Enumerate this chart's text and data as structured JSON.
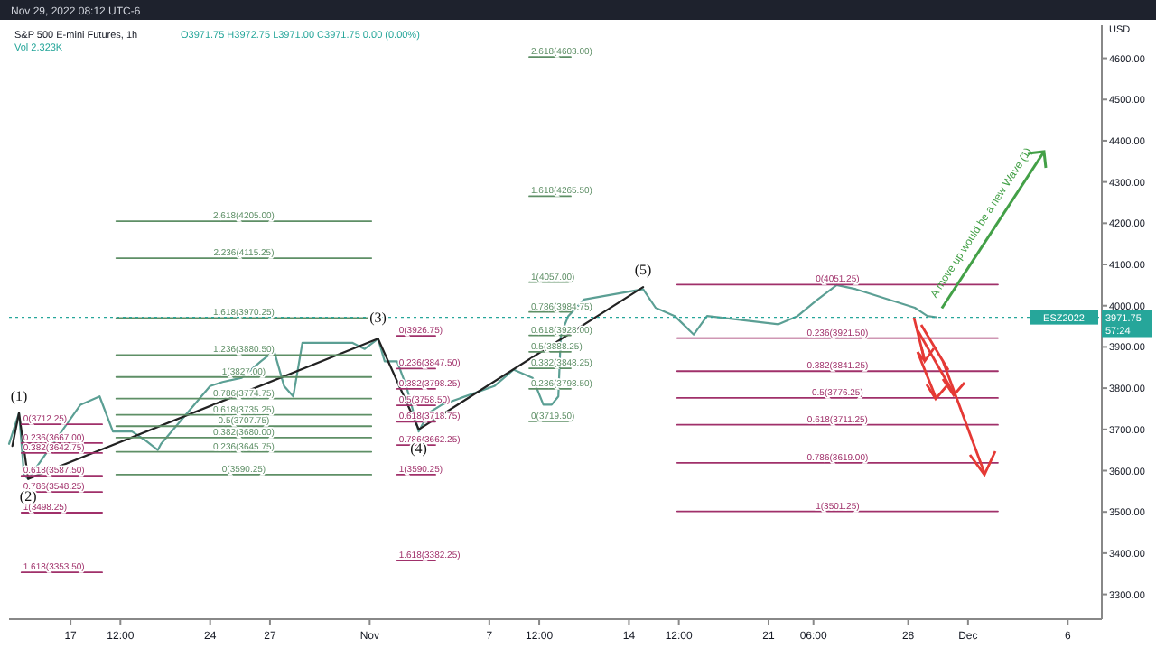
{
  "chart_data": {
    "type": "line",
    "title": "S&P 500 E-mini Futures, 1h",
    "subtitle": "O3971.75 H3972.75 L3971.00 C3971.75 0.00 (0.00%)",
    "ylabel": "USD",
    "xlim": [
      "2022-10-13T22:00",
      "2022-12-07T17:00"
    ],
    "xticks": [
      {
        "value": "2022-10-17",
        "label": "17"
      },
      {
        "value": "2022-10-19T12:00",
        "label": "12:00"
      },
      {
        "value": "2022-10-24",
        "label": "24"
      },
      {
        "value": "2022-10-27",
        "label": "27"
      },
      {
        "value": "2022-11-01",
        "label": "Nov"
      },
      {
        "value": "2022-11-07",
        "label": "7"
      },
      {
        "value": "2022-11-09T12:00",
        "label": "12:00"
      },
      {
        "value": "2022-11-14",
        "label": "14"
      },
      {
        "value": "2022-11-16T12:00",
        "label": "12:00"
      },
      {
        "value": "2022-11-21",
        "label": "21"
      },
      {
        "value": "2022-11-23T06:00",
        "label": "06:00"
      },
      {
        "value": "2022-11-28",
        "label": "28"
      },
      {
        "value": "2022-12-01",
        "label": "Dec"
      },
      {
        "value": "2022-12-06",
        "label": "6"
      }
    ],
    "ylim": [
      3240,
      4680
    ],
    "yticks": [
      {
        "value": 3300,
        "label": "3300.00"
      },
      {
        "value": 3400,
        "label": "3400.00"
      },
      {
        "value": 3500,
        "label": "3500.00"
      },
      {
        "value": 3600,
        "label": "3600.00"
      },
      {
        "value": 3700,
        "label": "3700.00"
      },
      {
        "value": 3800,
        "label": "3800.00"
      },
      {
        "value": 3900,
        "label": "3900.00"
      },
      {
        "value": 4000,
        "label": "4000.00"
      },
      {
        "value": 4100,
        "label": "4100.00"
      },
      {
        "value": 4200,
        "label": "4200.00"
      },
      {
        "value": 4300,
        "label": "4300.00"
      },
      {
        "value": 4400,
        "label": "4400.00"
      },
      {
        "value": 4500,
        "label": "4500.00"
      },
      {
        "value": 4600,
        "label": "4600.00"
      }
    ],
    "grid": false,
    "line_style": "solid",
    "marker": "none",
    "ref_lines": [
      {
        "axis": "y",
        "value": 3971.75,
        "label": "ESZ2022",
        "color": "#26a69a",
        "line_style": "dotted"
      }
    ],
    "annotations": [
      "Nov 29, 2022 08:12 UTC-6",
      "Vol 2.323K",
      "3971.75",
      "57:24",
      "A move up would be a new Wave (1)",
      {
        "text": "(1)",
        "x": "2022-10-14T10:00",
        "y": 3740
      },
      {
        "text": "(2)",
        "x": "2022-10-14T21:00",
        "y": 3580
      },
      {
        "text": "(3)",
        "x": "2022-11-01T10:00",
        "y": 3930
      },
      {
        "text": "(4)",
        "x": "2022-11-03T11:00",
        "y": 3695
      },
      {
        "text": "(5)",
        "x": "2022-11-14T17:00",
        "y": 4045
      }
    ],
    "series": [
      {
        "color": "#5b9f94",
        "x": [
          "2022-10-13T22:00",
          "2022-10-14T10:00",
          "2022-10-14T16:00",
          "2022-10-14T21:00",
          "2022-10-17T12:00",
          "2022-10-18T11:00",
          "2022-10-19T03:00",
          "2022-10-20T02:00",
          "2022-10-20T17:00",
          "2022-10-21T09:00",
          "2022-10-21T13:00",
          "2022-10-24T00:00",
          "2022-10-24T15:00",
          "2022-10-25T14:00",
          "2022-10-26T13:00",
          "2022-10-27T05:00",
          "2022-10-27T17:00",
          "2022-10-28T04:00",
          "2022-10-28T15:00",
          "2022-10-31T03:00",
          "2022-10-31T18:00",
          "2022-11-01T10:00",
          "2022-11-01T18:00",
          "2022-11-02T09:00",
          "2022-11-02T20:00",
          "2022-11-03T11:00",
          "2022-11-03T23:00",
          "2022-11-04T15:00",
          "2022-11-07T06:00",
          "2022-11-08T05:00",
          "2022-11-09T04:00",
          "2022-11-09T17:00",
          "2022-11-10T03:00",
          "2022-11-10T11:00",
          "2022-11-10T14:00",
          "2022-11-10T23:00",
          "2022-11-11T18:00",
          "2022-11-14T17:00",
          "2022-11-15T08:00",
          "2022-11-16T07:00",
          "2022-11-17T06:00",
          "2022-11-17T22:00",
          "2022-11-21T12:00",
          "2022-11-22T11:00",
          "2022-11-23T11:00",
          "2022-11-24T10:00",
          "2022-11-25T09:00",
          "2022-11-28T08:00",
          "2022-11-28T23:00",
          "2022-11-29T10:00"
        ],
        "values": [
          3665,
          3740,
          3590,
          3580,
          3760,
          3780,
          3695,
          3695,
          3675,
          3650,
          3665,
          3805,
          3815,
          3825,
          3865,
          3890,
          3805,
          3780,
          3910,
          3910,
          3895,
          3920,
          3865,
          3865,
          3805,
          3695,
          3740,
          3760,
          3805,
          3845,
          3825,
          3760,
          3760,
          3780,
          3930,
          3975,
          4015,
          4040,
          3995,
          3975,
          3930,
          3975,
          3955,
          3975,
          4015,
          4050,
          4040,
          3995,
          3975,
          3972
        ]
      },
      {
        "color": "#222222",
        "x": [
          "2022-10-14T02:00",
          "2022-10-14T10:00",
          "2022-10-14T21:00",
          "2022-11-01T10:00",
          "2022-11-03T11:00",
          "2022-11-14T17:00"
        ],
        "values": [
          3660,
          3740,
          3580,
          3920,
          3700,
          4045
        ]
      },
      {
        "name": "2.618(4205.00)",
        "color": "#5e8f66",
        "x": [
          "2022-10-19T07:00",
          "2022-11-01T02:00"
        ],
        "values": [
          4205,
          4205
        ]
      },
      {
        "name": "2.236(4115.25)",
        "color": "#5e8f66",
        "x": [
          "2022-10-19T07:00",
          "2022-11-01T02:00"
        ],
        "values": [
          4115.25,
          4115.25
        ]
      },
      {
        "name": "1.618(3970.25)",
        "color": "#5e8f66",
        "x": [
          "2022-10-19T07:00",
          "2022-11-01T02:00"
        ],
        "values": [
          3970.25,
          3970.25
        ]
      },
      {
        "name": "1.236(3880.50)",
        "color": "#5e8f66",
        "x": [
          "2022-10-19T07:00",
          "2022-11-01T02:00"
        ],
        "values": [
          3880.5,
          3880.5
        ]
      },
      {
        "name": "1(3827.00)",
        "color": "#5e8f66",
        "x": [
          "2022-10-19T07:00",
          "2022-11-01T02:00"
        ],
        "values": [
          3827,
          3827
        ]
      },
      {
        "name": "0.786(3774.75)",
        "color": "#5e8f66",
        "x": [
          "2022-10-19T07:00",
          "2022-11-01T02:00"
        ],
        "values": [
          3774.75,
          3774.75
        ]
      },
      {
        "name": "0.618(3735.25)",
        "color": "#5e8f66",
        "x": [
          "2022-10-19T07:00",
          "2022-11-01T02:00"
        ],
        "values": [
          3735.25,
          3735.25
        ]
      },
      {
        "name": "0.5(3707.75)",
        "color": "#5e8f66",
        "x": [
          "2022-10-19T07:00",
          "2022-11-01T02:00"
        ],
        "values": [
          3707.75,
          3707.75
        ]
      },
      {
        "name": "0.382(3680.00)",
        "color": "#5e8f66",
        "x": [
          "2022-10-19T07:00",
          "2022-11-01T02:00"
        ],
        "values": [
          3680,
          3680
        ]
      },
      {
        "name": "0.236(3645.75)",
        "color": "#5e8f66",
        "x": [
          "2022-10-19T07:00",
          "2022-11-01T02:00"
        ],
        "values": [
          3645.75,
          3645.75
        ]
      },
      {
        "name": "0(3590.25)",
        "color": "#5e8f66",
        "x": [
          "2022-10-19T07:00",
          "2022-11-01T02:00"
        ],
        "values": [
          3590.25,
          3590.25
        ]
      },
      {
        "name": "0(3712.25)",
        "color": "#a0306a",
        "x": [
          "2022-10-14T13:00",
          "2022-10-18T14:00"
        ],
        "values": [
          3712.25,
          3712.25
        ]
      },
      {
        "name": "0.236(3667.00)",
        "color": "#a0306a",
        "x": [
          "2022-10-14T13:00",
          "2022-10-18T14:00"
        ],
        "values": [
          3667,
          3667
        ]
      },
      {
        "name": "0.382(3642.75)",
        "color": "#a0306a",
        "x": [
          "2022-10-14T13:00",
          "2022-10-18T14:00"
        ],
        "values": [
          3642.75,
          3642.75
        ]
      },
      {
        "name": "0.618(3587.50)",
        "color": "#a0306a",
        "x": [
          "2022-10-14T13:00",
          "2022-10-18T14:00"
        ],
        "values": [
          3587.5,
          3587.5
        ]
      },
      {
        "name": "0.786(3548.25)",
        "color": "#a0306a",
        "x": [
          "2022-10-14T13:00",
          "2022-10-18T14:00"
        ],
        "values": [
          3548.25,
          3548.25
        ]
      },
      {
        "name": "1(3498.25)",
        "color": "#a0306a",
        "x": [
          "2022-10-14T13:00",
          "2022-10-18T14:00"
        ],
        "values": [
          3498.25,
          3498.25
        ]
      },
      {
        "name": "1.618(3353.50)",
        "color": "#a0306a",
        "x": [
          "2022-10-14T13:00",
          "2022-10-18T14:00"
        ],
        "values": [
          3353.5,
          3353.5
        ]
      },
      {
        "name": "0(3926.75)",
        "color": "#a0306a",
        "x": [
          "2022-11-02T09:00",
          "2022-11-04T07:00"
        ],
        "values": [
          3926.75,
          3926.75
        ]
      },
      {
        "name": "0.236(3847.50)",
        "color": "#a0306a",
        "x": [
          "2022-11-02T09:00",
          "2022-11-04T07:00"
        ],
        "values": [
          3847.5,
          3847.5
        ]
      },
      {
        "name": "0.382(3798.25)",
        "color": "#a0306a",
        "x": [
          "2022-11-02T09:00",
          "2022-11-04T07:00"
        ],
        "values": [
          3798.25,
          3798.25
        ]
      },
      {
        "name": "0.5(3758.50)",
        "color": "#a0306a",
        "x": [
          "2022-11-02T09:00",
          "2022-11-04T07:00"
        ],
        "values": [
          3758.5,
          3758.5
        ]
      },
      {
        "name": "0.618(3718.75)",
        "color": "#a0306a",
        "x": [
          "2022-11-02T09:00",
          "2022-11-04T07:00"
        ],
        "values": [
          3718.75,
          3718.75
        ]
      },
      {
        "name": "0.786(3662.25)",
        "color": "#a0306a",
        "x": [
          "2022-11-02T09:00",
          "2022-11-04T07:00"
        ],
        "values": [
          3662.25,
          3662.25
        ]
      },
      {
        "name": "1(3590.25)",
        "color": "#a0306a",
        "x": [
          "2022-11-02T09:00",
          "2022-11-04T07:00"
        ],
        "values": [
          3590.25,
          3590.25
        ]
      },
      {
        "name": "1.618(3382.25)",
        "color": "#a0306a",
        "x": [
          "2022-11-02T09:00",
          "2022-11-04T07:00"
        ],
        "values": [
          3382.25,
          3382.25
        ]
      },
      {
        "name": "2.618(4603.00)",
        "color": "#5e8f66",
        "x": [
          "2022-11-09T00:00",
          "2022-11-11T02:00"
        ],
        "values": [
          4603,
          4603
        ]
      },
      {
        "name": "1.618(4265.50)",
        "color": "#5e8f66",
        "x": [
          "2022-11-09T00:00",
          "2022-11-11T02:00"
        ],
        "values": [
          4265.5,
          4265.5
        ]
      },
      {
        "name": "1(4057.00)",
        "color": "#5e8f66",
        "x": [
          "2022-11-09T00:00",
          "2022-11-11T02:00"
        ],
        "values": [
          4057,
          4057
        ]
      },
      {
        "name": "0.786(3984.75)",
        "color": "#5e8f66",
        "x": [
          "2022-11-09T00:00",
          "2022-11-11T02:00"
        ],
        "values": [
          3984.75,
          3984.75
        ]
      },
      {
        "name": "0.618(3928.00)",
        "color": "#5e8f66",
        "x": [
          "2022-11-09T00:00",
          "2022-11-11T02:00"
        ],
        "values": [
          3928,
          3928
        ]
      },
      {
        "name": "0.5(3888.25)",
        "color": "#5e8f66",
        "x": [
          "2022-11-09T00:00",
          "2022-11-11T02:00"
        ],
        "values": [
          3888.25,
          3888.25
        ]
      },
      {
        "name": "0.382(3848.25)",
        "color": "#5e8f66",
        "x": [
          "2022-11-09T00:00",
          "2022-11-11T02:00"
        ],
        "values": [
          3848.25,
          3848.25
        ]
      },
      {
        "name": "0.236(3798.50)",
        "color": "#5e8f66",
        "x": [
          "2022-11-09T00:00",
          "2022-11-11T02:00"
        ],
        "values": [
          3798.5,
          3798.5
        ]
      },
      {
        "name": "0(3719.50)",
        "color": "#5e8f66",
        "x": [
          "2022-11-09T00:00",
          "2022-11-11T02:00"
        ],
        "values": [
          3719.5,
          3719.5
        ]
      },
      {
        "name": "0(4051.25)",
        "color": "#a0306a",
        "x": [
          "2022-11-16T10:00",
          "2022-12-02T12:00"
        ],
        "values": [
          4051.25,
          4051.25
        ]
      },
      {
        "name": "0.236(3921.50)",
        "color": "#a0306a",
        "x": [
          "2022-11-16T10:00",
          "2022-12-02T12:00"
        ],
        "values": [
          3921.5,
          3921.5
        ]
      },
      {
        "name": "0.382(3841.25)",
        "color": "#a0306a",
        "x": [
          "2022-11-16T10:00",
          "2022-12-02T12:00"
        ],
        "values": [
          3841.25,
          3841.25
        ]
      },
      {
        "name": "0.5(3776.25)",
        "color": "#a0306a",
        "x": [
          "2022-11-16T10:00",
          "2022-12-02T12:00"
        ],
        "values": [
          3776.25,
          3776.25
        ]
      },
      {
        "name": "0.618(3711.25)",
        "color": "#a0306a",
        "x": [
          "2022-11-16T10:00",
          "2022-12-02T12:00"
        ],
        "values": [
          3711.25,
          3711.25
        ]
      },
      {
        "name": "0.786(3619.00)",
        "color": "#a0306a",
        "x": [
          "2022-11-16T10:00",
          "2022-12-02T12:00"
        ],
        "values": [
          3619,
          3619
        ]
      },
      {
        "name": "1(3501.25)",
        "color": "#a0306a",
        "x": [
          "2022-11-16T10:00",
          "2022-12-02T12:00"
        ],
        "values": [
          3501.25,
          3501.25
        ]
      }
    ]
  }
}
